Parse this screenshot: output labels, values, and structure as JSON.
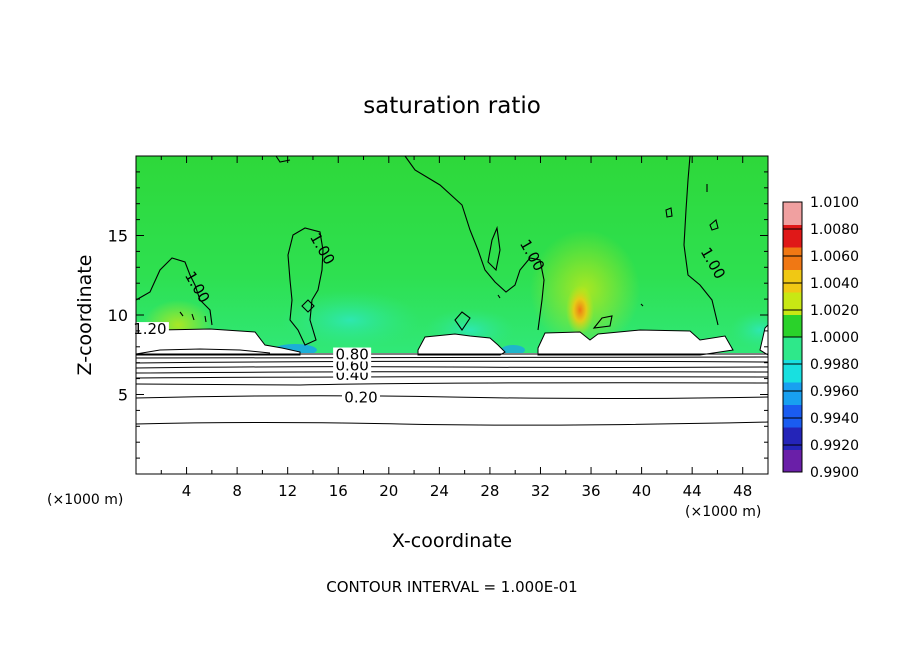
{
  "chart_data": {
    "type": "heatmap",
    "title": "saturation ratio",
    "xlabel": "X-coordinate",
    "ylabel": "Z-coordinate",
    "x_unit_note": "(×1000 m)",
    "y_unit_note": "(×1000 m)",
    "footer": "CONTOUR INTERVAL = 1.000E-01",
    "xlim": [
      0,
      50
    ],
    "ylim": [
      0,
      20
    ],
    "x_ticks": [
      4,
      8,
      12,
      16,
      20,
      24,
      28,
      32,
      36,
      40,
      44,
      48
    ],
    "y_ticks": [
      5,
      10,
      15
    ],
    "colorbar": {
      "min": 0.99,
      "max": 1.01,
      "ticks": [
        "0.9900",
        "0.9920",
        "0.9940",
        "0.9960",
        "0.9980",
        "1.0000",
        "1.0020",
        "1.0040",
        "1.0060",
        "1.0080",
        "1.0100"
      ],
      "colors": [
        "#6a1fa8",
        "#2424b8",
        "#1a5cf0",
        "#18a0f0",
        "#18e0e0",
        "#2ee88a",
        "#2ad22a",
        "#c8e814",
        "#f0c814",
        "#f07814",
        "#e01818",
        "#f0a0a0"
      ]
    },
    "contour_labels": [
      {
        "text": "0.20",
        "x": 17.8,
        "z": 4.5
      },
      {
        "text": "0.40",
        "x": 17.1,
        "z": 5.9
      },
      {
        "text": "0.60",
        "x": 17.1,
        "z": 6.5
      },
      {
        "text": "0.80",
        "x": 17.1,
        "z": 7.2
      },
      {
        "text": "1.20",
        "x": 1.1,
        "z": 8.8
      },
      {
        "text": "1.00",
        "x": 4.5,
        "z": 11.6
      },
      {
        "text": "1.00",
        "x": 14.4,
        "z": 14.0
      },
      {
        "text": "1.00",
        "x": 31.0,
        "z": 13.6
      },
      {
        "text": "1.00",
        "x": 45.3,
        "z": 13.1
      }
    ],
    "cloud_top_km": 8.9,
    "cloud_base_km": 7.5
  }
}
